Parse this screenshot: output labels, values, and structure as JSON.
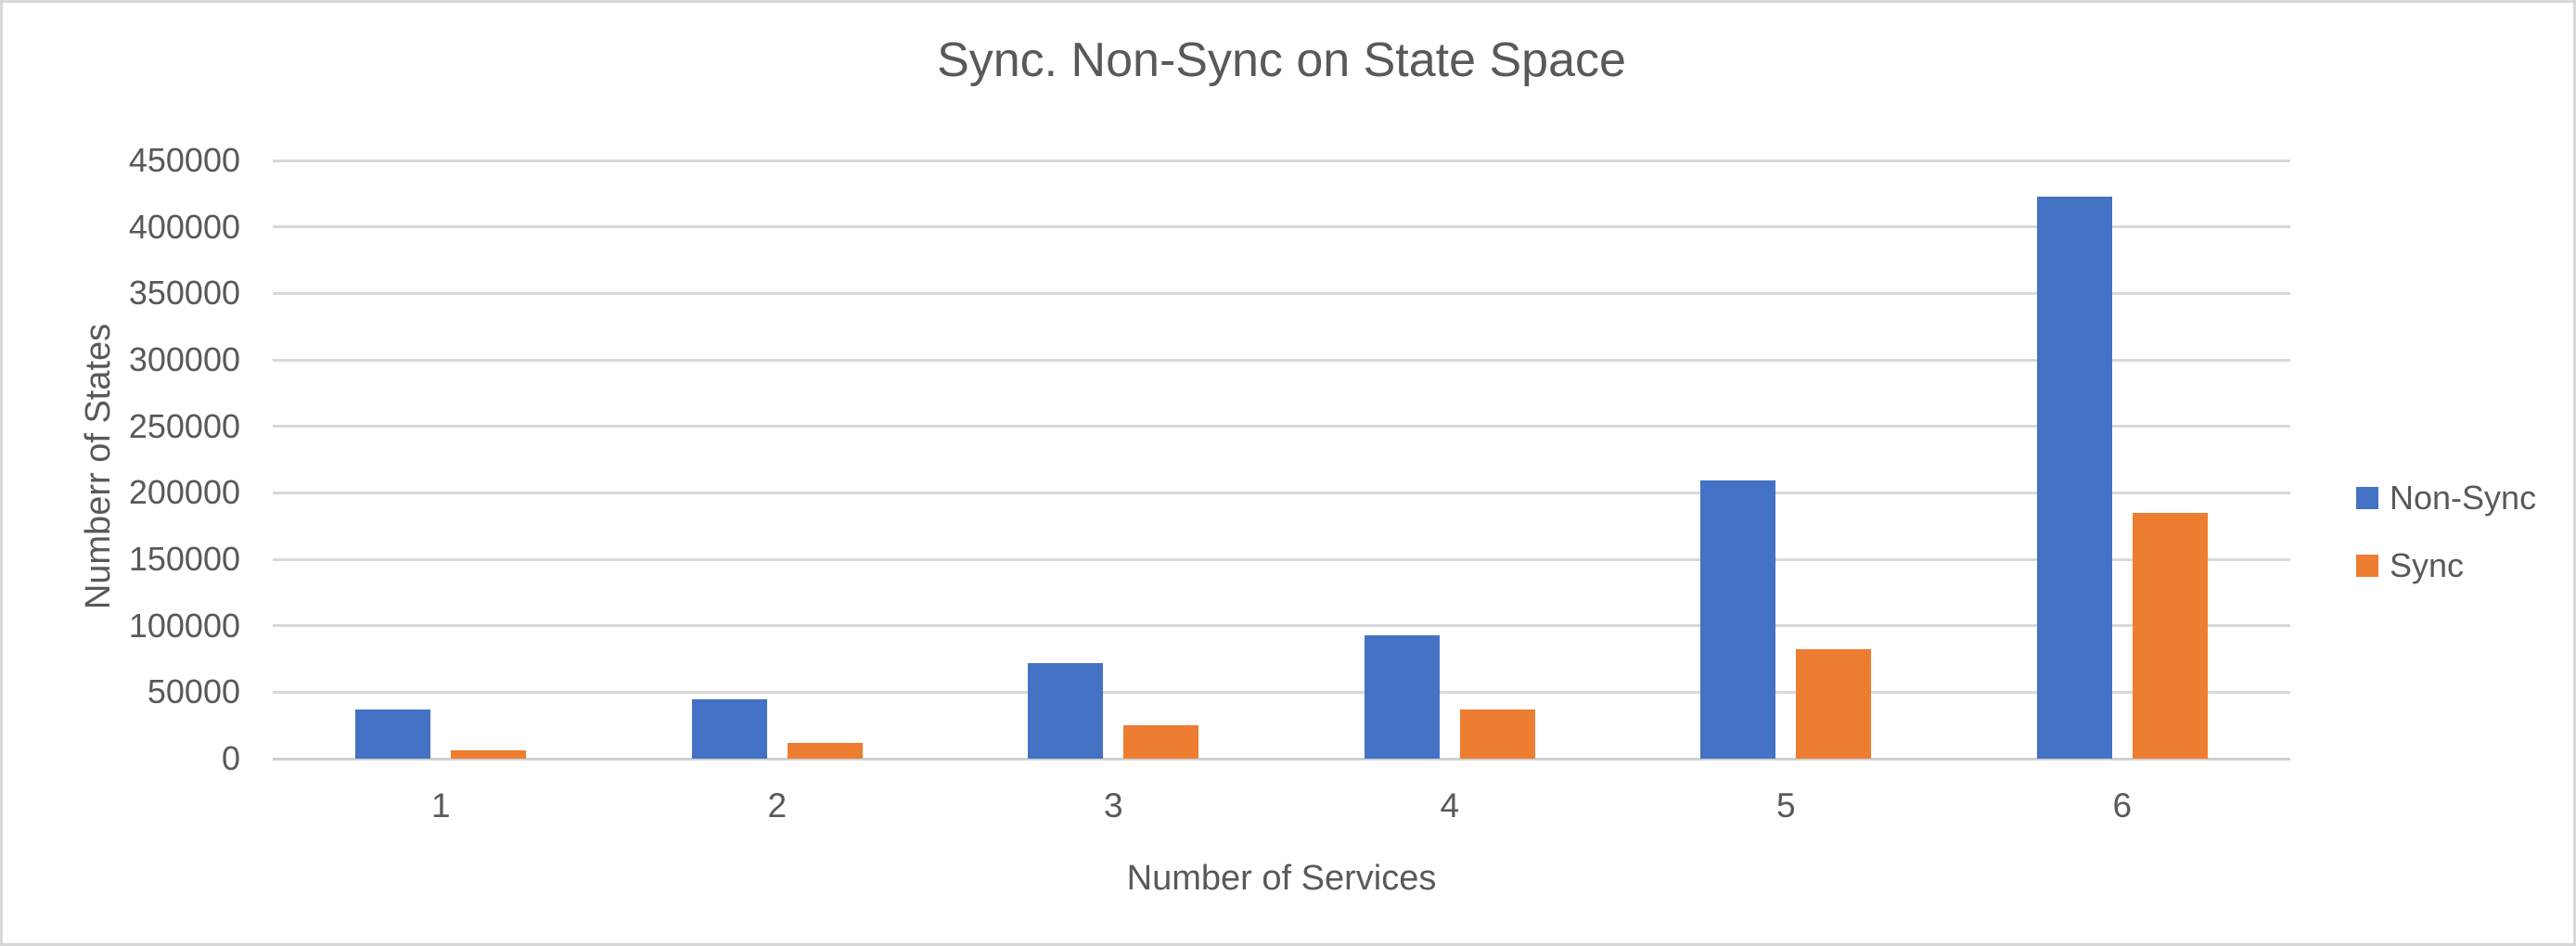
{
  "chart_data": {
    "type": "bar",
    "title": "Sync. Non-Sync on State Space",
    "xlabel": "Number of Services",
    "ylabel": "Numberr of States",
    "categories": [
      "1",
      "2",
      "3",
      "4",
      "5",
      "6"
    ],
    "series": [
      {
        "name": "Non-Sync",
        "color": "#4472C4",
        "values": [
          37000,
          45000,
          72000,
          93000,
          209000,
          423000
        ]
      },
      {
        "name": "Sync",
        "color": "#ED7D31",
        "values": [
          6500,
          12000,
          25000,
          37000,
          82500,
          185000
        ]
      }
    ],
    "ylim": [
      0,
      450000
    ],
    "ytick_step": 50000,
    "yticks": [
      0,
      50000,
      100000,
      150000,
      200000,
      250000,
      300000,
      350000,
      400000,
      450000
    ],
    "grid": "horizontal",
    "legend_position": "right",
    "colors": {
      "text": "#595959",
      "gridline": "#D9D9D9",
      "axis_line": "#D0D0D0",
      "background": "#FFFFFF",
      "border": "#D8D8D8"
    }
  }
}
